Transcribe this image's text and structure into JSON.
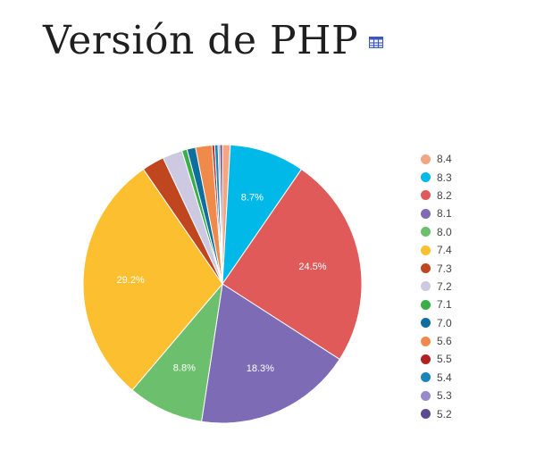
{
  "header": {
    "title": "Versión de PHP",
    "table_icon": "table-icon"
  },
  "chart_data": {
    "type": "pie",
    "title": "Versión de PHP",
    "legend_position": "right",
    "start_angle_deg": 0,
    "direction": "clockwise",
    "slices": [
      {
        "label": "8.4",
        "value": 0.9,
        "color": "#f4a582",
        "show_label": false
      },
      {
        "label": "8.3",
        "value": 8.7,
        "color": "#00b9e8",
        "show_label": true,
        "display": "8.7%"
      },
      {
        "label": "8.2",
        "value": 24.5,
        "color": "#e05a5a",
        "show_label": true,
        "display": "24.5%"
      },
      {
        "label": "8.1",
        "value": 18.3,
        "color": "#7e6bb5",
        "show_label": true,
        "display": "18.3%"
      },
      {
        "label": "8.0",
        "value": 8.8,
        "color": "#6cbf6c",
        "show_label": true,
        "display": "8.8%"
      },
      {
        "label": "7.4",
        "value": 29.2,
        "color": "#fbbf2f",
        "show_label": true,
        "display": "29.2%"
      },
      {
        "label": "7.3",
        "value": 2.6,
        "color": "#c0461f",
        "show_label": false
      },
      {
        "label": "7.2",
        "value": 2.3,
        "color": "#cec9e3",
        "show_label": false
      },
      {
        "label": "7.1",
        "value": 0.6,
        "color": "#3aae48",
        "show_label": false
      },
      {
        "label": "7.0",
        "value": 1.0,
        "color": "#0e6f9f",
        "show_label": false
      },
      {
        "label": "5.6",
        "value": 1.9,
        "color": "#f08a4b",
        "show_label": false
      },
      {
        "label": "5.5",
        "value": 0.3,
        "color": "#b22222",
        "show_label": false
      },
      {
        "label": "5.4",
        "value": 0.4,
        "color": "#1985ba",
        "show_label": false
      },
      {
        "label": "5.3",
        "value": 0.2,
        "color": "#9a8ccc",
        "show_label": false
      },
      {
        "label": "5.2",
        "value": 0.3,
        "color": "#5c4c8f",
        "show_label": false
      }
    ]
  }
}
